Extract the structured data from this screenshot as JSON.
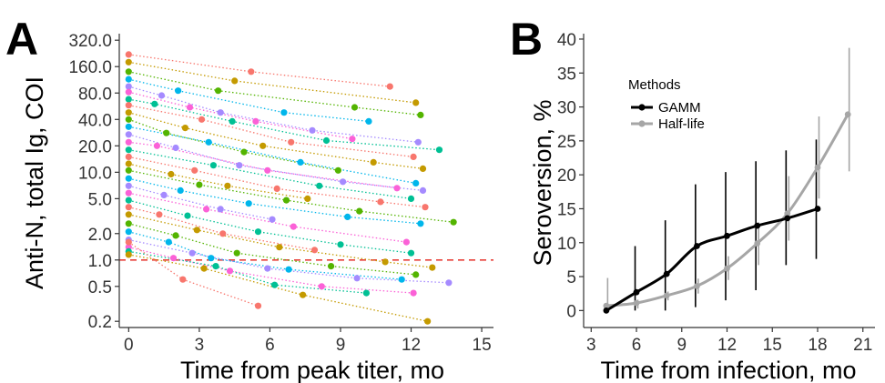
{
  "chart_data": [
    {
      "panel": "A",
      "type": "scatter",
      "xlabel": "Time from peak titer, mo",
      "ylabel": "Anti-N, total Ig, COI",
      "y_scale": "log",
      "xlim": [
        -0.4,
        15.5
      ],
      "ylim": [
        0.17,
        380
      ],
      "x_ticks": [
        0,
        3,
        6,
        9,
        12,
        15
      ],
      "y_ticks": [
        {
          "value": 0.2,
          "label": "0.2"
        },
        {
          "value": 0.5,
          "label": "0.5"
        },
        {
          "value": 1,
          "label": "1.0"
        },
        {
          "value": 2,
          "label": "2.0"
        },
        {
          "value": 5,
          "label": "5.0"
        },
        {
          "value": 10,
          "label": "10.0"
        },
        {
          "value": 20,
          "label": "20.0"
        },
        {
          "value": 40,
          "label": "40.0"
        },
        {
          "value": 80,
          "label": "80.0"
        },
        {
          "value": 160,
          "label": "160.0"
        },
        {
          "value": 320,
          "label": "320.0"
        }
      ],
      "threshold": {
        "value": 1.0,
        "color": "#e8423a",
        "style": "dashed"
      },
      "grid": false,
      "series_colors": [
        "#f8766d",
        "#c49a00",
        "#53b400",
        "#00b6eb",
        "#a58aff",
        "#fb61d7",
        "#00c094"
      ],
      "series": [
        {
          "x": [
            0,
            5.2,
            11.1
          ],
          "y": [
            220,
            140,
            95
          ]
        },
        {
          "x": [
            0,
            4.5,
            12.2
          ],
          "y": [
            180,
            110,
            62
          ]
        },
        {
          "x": [
            0,
            3.8,
            9.6,
            12.4
          ],
          "y": [
            140,
            85,
            55,
            45
          ]
        },
        {
          "x": [
            0,
            2.1,
            6.6,
            10.2
          ],
          "y": [
            115,
            85,
            48,
            38
          ]
        },
        {
          "x": [
            0,
            1.4,
            3.9,
            7.8,
            12.3
          ],
          "y": [
            95,
            75,
            48,
            30,
            22
          ]
        },
        {
          "x": [
            0,
            2.6,
            5.4,
            9.5
          ],
          "y": [
            82,
            55,
            38,
            24
          ]
        },
        {
          "x": [
            0,
            1.1,
            4.4,
            8.4,
            13.2
          ],
          "y": [
            68,
            60,
            38,
            23,
            18
          ]
        },
        {
          "x": [
            0,
            3.1,
            6.9,
            12.1
          ],
          "y": [
            58,
            40,
            22,
            15
          ]
        },
        {
          "x": [
            0,
            2.4,
            5.7,
            10.4,
            12.5
          ],
          "y": [
            48,
            32,
            20,
            13,
            11
          ]
        },
        {
          "x": [
            0,
            1.6,
            4.9,
            8.9
          ],
          "y": [
            40,
            28,
            17,
            10.5
          ]
        },
        {
          "x": [
            0,
            3.4,
            7.3,
            12.2
          ],
          "y": [
            33,
            22,
            13,
            7.5
          ]
        },
        {
          "x": [
            0,
            2.0,
            4.7,
            9.1,
            12.5
          ],
          "y": [
            27,
            19,
            12,
            7.8,
            6.2
          ]
        },
        {
          "x": [
            0,
            1.2,
            5.9,
            11.4
          ],
          "y": [
            22,
            20,
            10.5,
            6.6
          ]
        },
        {
          "x": [
            0,
            3.6,
            8.1,
            12.0
          ],
          "y": [
            18,
            12,
            7.0,
            5.0
          ]
        },
        {
          "x": [
            0,
            2.8,
            6.3,
            10.7,
            12.6
          ],
          "y": [
            15,
            10.5,
            6.5,
            4.6,
            4.0
          ]
        },
        {
          "x": [
            0,
            1.8,
            4.2,
            7.6
          ],
          "y": [
            12.5,
            9.5,
            7.0,
            5.0
          ]
        },
        {
          "x": [
            0,
            3.0,
            6.7,
            9.8,
            13.8
          ],
          "y": [
            10.5,
            7.2,
            4.8,
            3.6,
            2.7
          ]
        },
        {
          "x": [
            0,
            2.2,
            5.1,
            9.3,
            12.4
          ],
          "y": [
            8.5,
            6.2,
            4.4,
            3.1,
            2.6
          ]
        },
        {
          "x": [
            0,
            1.5,
            3.9,
            6.1
          ],
          "y": [
            7.0,
            5.5,
            3.8,
            2.9
          ]
        },
        {
          "x": [
            0,
            3.3,
            7.0,
            11.8
          ],
          "y": [
            5.8,
            3.8,
            2.4,
            1.6
          ]
        },
        {
          "x": [
            0,
            2.5,
            5.5,
            9.0,
            12.0
          ],
          "y": [
            4.8,
            3.2,
            2.1,
            1.5,
            1.2
          ]
        },
        {
          "x": [
            0,
            1.3,
            4.0,
            7.9
          ],
          "y": [
            4.0,
            3.3,
            2.0,
            1.3
          ]
        },
        {
          "x": [
            0,
            2.9,
            6.4,
            10.9,
            12.9
          ],
          "y": [
            3.3,
            2.2,
            1.4,
            0.95,
            0.82
          ]
        },
        {
          "x": [
            0,
            2.0,
            4.6,
            8.6,
            12.2
          ],
          "y": [
            2.6,
            1.9,
            1.2,
            0.85,
            0.68
          ]
        },
        {
          "x": [
            0,
            1.7,
            3.5,
            6.8,
            11.6
          ],
          "y": [
            2.1,
            1.6,
            1.05,
            0.78,
            0.6
          ]
        },
        {
          "x": [
            0,
            2.7,
            5.9,
            9.7,
            13.6
          ],
          "y": [
            1.7,
            1.2,
            0.8,
            0.62,
            0.55
          ]
        },
        {
          "x": [
            0,
            1.9,
            4.3,
            8.2,
            12.1
          ],
          "y": [
            1.4,
            1.05,
            0.75,
            0.5,
            0.42
          ]
        },
        {
          "x": [
            0,
            3.7,
            6.2,
            10.1
          ],
          "y": [
            1.25,
            0.85,
            0.52,
            0.42
          ]
        },
        {
          "x": [
            0,
            2.3,
            5.5
          ],
          "y": [
            1.6,
            0.6,
            0.3
          ]
        },
        {
          "x": [
            0,
            3.2,
            7.4,
            12.7
          ],
          "y": [
            1.15,
            0.8,
            0.4,
            0.2
          ]
        }
      ]
    },
    {
      "panel": "B",
      "type": "line",
      "xlabel": "Time from infection, mo",
      "ylabel": "Seroversion, %",
      "xlim": [
        2.5,
        21.8
      ],
      "ylim": [
        -2.5,
        40.8
      ],
      "x_ticks": [
        3,
        6,
        9,
        12,
        15,
        18,
        21
      ],
      "y_ticks": [
        0,
        5,
        10,
        15,
        20,
        25,
        30,
        35,
        40
      ],
      "grid": false,
      "legend": {
        "title": "Methods",
        "position": "top-left"
      },
      "series": [
        {
          "name": "GAMM",
          "color": "#000000",
          "x": [
            4,
            6,
            8,
            10,
            12,
            14,
            16,
            18
          ],
          "y": [
            0,
            2.7,
            5.4,
            9.5,
            11.0,
            12.5,
            13.6,
            15.0
          ],
          "lower": [
            0,
            0,
            0,
            0.5,
            1.5,
            3.0,
            6.7,
            7.6
          ],
          "upper": [
            0.5,
            9.5,
            13.3,
            18.6,
            20.4,
            22.0,
            23.6,
            25.2
          ]
        },
        {
          "name": "Half-life",
          "color": "#a6a6a6",
          "x": [
            4,
            6,
            8,
            10,
            12,
            14,
            16,
            18,
            20
          ],
          "y": [
            0.7,
            1.1,
            2.2,
            3.6,
            6.2,
            9.9,
            14.3,
            21.1,
            28.9
          ],
          "lower": [
            0,
            0.3,
            1.5,
            2.5,
            4.5,
            6.7,
            10.3,
            16.5,
            20.5
          ],
          "upper": [
            4.8,
            1.6,
            2.8,
            4.7,
            8.0,
            13.0,
            19.8,
            28.6,
            38.7
          ]
        }
      ]
    }
  ],
  "panels": {
    "a_letter": "A",
    "b_letter": "B"
  }
}
